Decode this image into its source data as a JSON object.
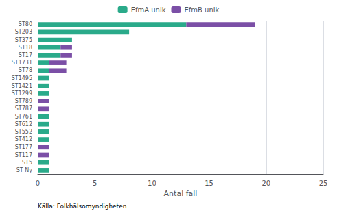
{
  "chart_data": {
    "type": "bar",
    "orientation": "horizontal",
    "stacked": true,
    "categories": [
      "ST80",
      "ST203",
      "ST375",
      "ST18",
      "ST17",
      "ST1731",
      "ST78",
      "ST1495",
      "ST1421",
      "ST1299",
      "ST789",
      "ST787",
      "ST761",
      "ST612",
      "ST552",
      "ST412",
      "ST177",
      "ST117",
      "ST5",
      "ST Ny"
    ],
    "series": [
      {
        "name": "EfmA unik",
        "color": "#2aaa8a",
        "values": [
          13,
          8,
          3,
          2,
          2,
          1,
          1,
          1,
          1,
          1,
          0,
          0,
          1,
          1,
          1,
          1,
          0,
          0,
          1,
          1
        ]
      },
      {
        "name": "EfmB unik",
        "color": "#7b4fa6",
        "values": [
          6,
          0,
          0,
          1,
          1,
          1.5,
          1.5,
          0,
          0,
          0,
          1,
          1,
          0,
          0,
          0,
          0,
          1,
          1,
          0,
          0
        ]
      }
    ],
    "xlabel": "Antal fall",
    "xlim": [
      0,
      25
    ],
    "xticks": [
      0,
      5,
      10,
      15,
      20,
      25
    ],
    "grid": true,
    "legend": "top",
    "annotations": [
      "Källa: Folkhälsomyndigheten"
    ]
  }
}
